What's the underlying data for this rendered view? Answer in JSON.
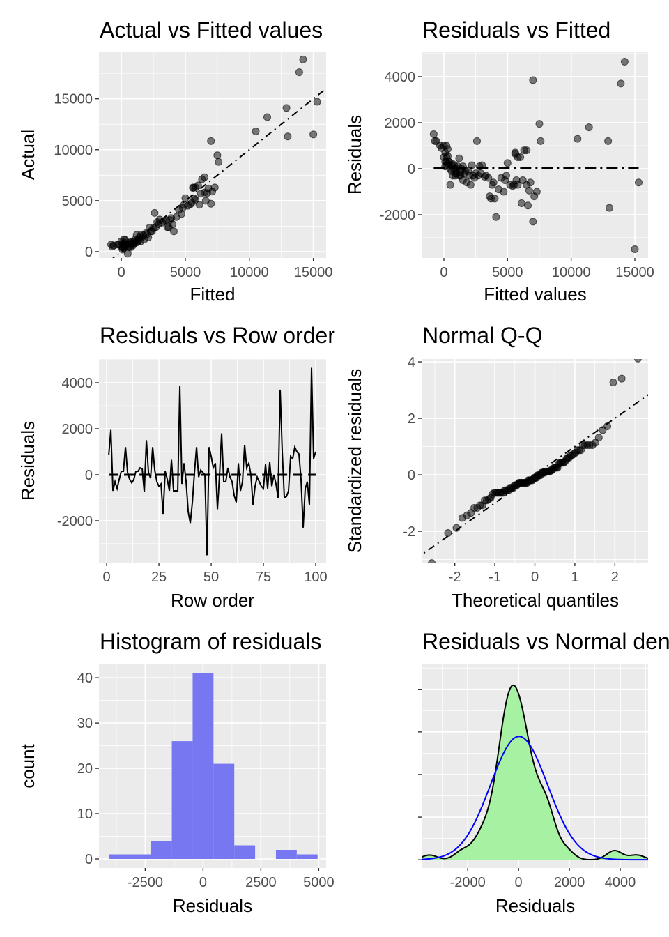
{
  "chart_data": [
    {
      "type": "scatter",
      "title": "Actual vs Fitted values",
      "xlabel": "Fitted",
      "ylabel": "Actual",
      "xlim": [
        -1750,
        16000
      ],
      "ylim": [
        -620,
        19560
      ],
      "xticks": [
        0,
        5000,
        10000,
        15000
      ],
      "xtick_labels": [
        "0",
        "5000",
        "10000",
        "15000"
      ],
      "yticks": [
        0,
        5000,
        10000,
        15000
      ],
      "ytick_labels": [
        "0",
        "5000",
        "10000",
        "15000"
      ],
      "reference_line": "y = x (dash-dot)",
      "grid": true
    },
    {
      "type": "scatter",
      "title": "Residuals vs Fitted",
      "xlabel": "Fitted values",
      "ylabel": "Residuals",
      "xlim": [
        -1750,
        16040
      ],
      "ylim": [
        -3880,
        5060
      ],
      "xticks": [
        0,
        5000,
        10000,
        15000
      ],
      "xtick_labels": [
        "0",
        "5000",
        "10000",
        "15000"
      ],
      "yticks": [
        -2000,
        0,
        2000,
        4000
      ],
      "ytick_labels": [
        "-2000",
        "0",
        "2000",
        "4000"
      ],
      "grid": true
    },
    {
      "type": "line",
      "title": "Residuals vs Row order",
      "xlabel": "Row order",
      "ylabel": "Residuals",
      "xlim": [
        -3.7,
        105
      ],
      "ylim": [
        -3820,
        5030
      ],
      "xticks": [
        0,
        25,
        50,
        75,
        100
      ],
      "xtick_labels": [
        "0",
        "25",
        "50",
        "75",
        "100"
      ],
      "yticks": [
        -2000,
        0,
        2000,
        4000
      ],
      "ytick_labels": [
        "-2000",
        "0",
        "2000",
        "4000"
      ],
      "grid": true
    },
    {
      "type": "scatter",
      "title": "Normal Q-Q",
      "xlabel": "Theoretical quantiles",
      "ylabel": "Standardized residuals",
      "xlim": [
        -2.83,
        2.83
      ],
      "ylim": [
        -3.11,
        4.1
      ],
      "xticks": [
        -2,
        -1,
        0,
        1,
        2
      ],
      "xtick_labels": [
        "-2",
        "-1",
        "0",
        "1",
        "2"
      ],
      "yticks": [
        -2,
        0,
        2,
        4
      ],
      "ytick_labels": [
        "-2",
        "0",
        "2",
        "4"
      ],
      "grid": true
    },
    {
      "type": "bar",
      "title": "Histogram of residuals",
      "xlabel": "Residuals",
      "ylabel": "count",
      "bin_edges": [
        -4050,
        -3150,
        -2250,
        -1350,
        -450,
        450,
        1350,
        2250,
        3150,
        4050,
        4950
      ],
      "counts": [
        1,
        1,
        4,
        26,
        41,
        21,
        3,
        0,
        2,
        1
      ],
      "bar_color": "#7777f2",
      "xlim": [
        -4500,
        5320
      ],
      "ylim": [
        -2,
        43.1
      ],
      "xticks": [
        -2500,
        0,
        2500,
        5000
      ],
      "xtick_labels": [
        "-2500",
        "0",
        "2500",
        "5000"
      ],
      "yticks": [
        0,
        10,
        20,
        30,
        40
      ],
      "ytick_labels": [
        "0",
        "10",
        "20",
        "30",
        "40"
      ],
      "grid": true
    },
    {
      "type": "area",
      "title": "Residuals vs Normal density",
      "xlabel": "Residuals",
      "ylabel": "",
      "xlim": [
        -3814,
        5096
      ],
      "xticks": [
        -2000,
        0,
        2000,
        4000
      ],
      "xtick_labels": [
        "-2000",
        "0",
        "2000",
        "4000"
      ],
      "density_fill": "#a6f2a2",
      "density_line": "#000000",
      "normal_line": "#0000ff",
      "grid": true
    }
  ],
  "model": {
    "fitted": [
      300,
      7500,
      500,
      1200,
      1800,
      900,
      200,
      3000,
      -700,
      1500,
      2500,
      3200,
      1000,
      600,
      2200,
      400,
      5000,
      5400,
      -800,
      100,
      1300,
      2600,
      700,
      2000,
      6200,
      4500,
      13000,
      800,
      1600,
      3800,
      5600,
      5800,
      6500,
      2100,
      7000,
      3500,
      6000,
      900,
      6600,
      4100,
      3600,
      1100,
      7600,
      1700,
      300,
      2800,
      500,
      15000,
      12900,
      6300,
      200,
      0,
      6100,
      1400,
      11400,
      2300,
      4900,
      100,
      1900,
      700,
      4300,
      7100,
      200,
      5200,
      3300,
      10500,
      400,
      5800,
      1000,
      3700,
      1500,
      600,
      2700,
      4800,
      6800,
      1200,
      3900,
      300,
      5700,
      800,
      2400,
      7300,
      13900,
      0,
      4700,
      6700,
      5500,
      6500,
      100,
      -600,
      -300,
      -200,
      2900,
      7000,
      15300,
      1300,
      4000,
      14200,
      5600,
      200
    ],
    "residuals": [
      850,
      1950,
      -700,
      -300,
      -600,
      -200,
      150,
      150,
      1200,
      100,
      -200,
      -350,
      -200,
      150,
      150,
      300,
      250,
      -750,
      1500,
      100,
      -150,
      1200,
      200,
      -300,
      -500,
      -400,
      -1700,
      150,
      -200,
      -700,
      650,
      -700,
      -700,
      -700,
      3850,
      -400,
      500,
      -300,
      -1600,
      -2100,
      -1200,
      100,
      1200,
      -100,
      200,
      100,
      0,
      -3500,
      1200,
      800,
      300,
      500,
      -1500,
      0,
      1800,
      -300,
      -300,
      300,
      -100,
      -300,
      -900,
      -1200,
      500,
      -700,
      -300,
      1300,
      300,
      500,
      0,
      -1300,
      -500,
      -100,
      -300,
      -500,
      -600,
      450,
      -600,
      550,
      -500,
      0,
      -400,
      -1000,
      3700,
      1000,
      -1000,
      -950,
      -700,
      800,
      700,
      1200,
      1000,
      900,
      -200,
      -2300,
      -600,
      -300,
      -1300,
      4650,
      700,
      1000
    ]
  }
}
